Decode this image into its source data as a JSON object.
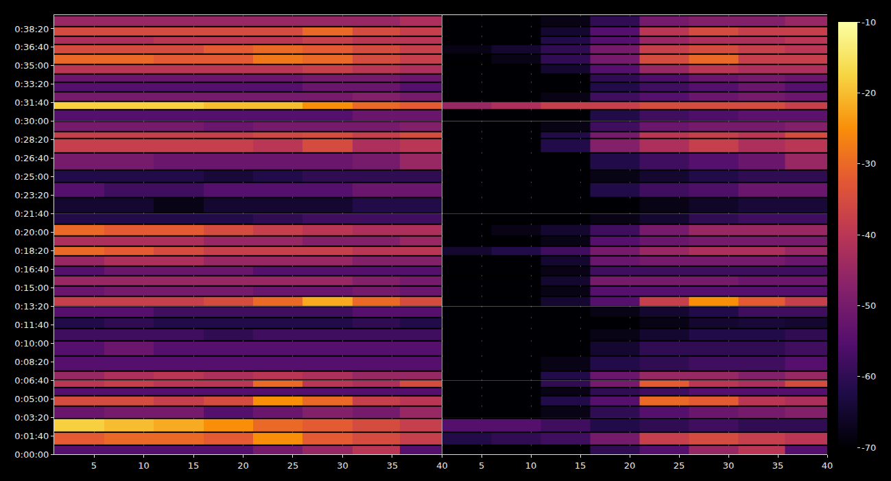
{
  "chart_data": {
    "type": "heatmap",
    "grid": true,
    "x": [
      3.5,
      8.5,
      13.5,
      18.5,
      23.5,
      28.5,
      33.5,
      38
    ],
    "y": [
      20,
      81,
      156,
      230,
      293,
      340,
      378,
      422,
      478,
      581,
      648,
      711,
      767,
      833,
      878,
      941,
      989,
      1044,
      1100,
      1148,
      1211,
      1274,
      1333,
      1441,
      1500,
      1574,
      1685,
      1730,
      1759,
      1841,
      1885,
      1933,
      1989,
      2033,
      2081,
      2133,
      2193,
      2237,
      2281,
      2341
    ],
    "xlim": [
      1,
      40
    ],
    "xticks": [
      5,
      10,
      15,
      20,
      25,
      30,
      35,
      40
    ],
    "ylim": [
      0,
      2374
    ],
    "yticks": [
      {
        "value": 0,
        "label": "0:00:00"
      },
      {
        "value": 100,
        "label": "0:01:40"
      },
      {
        "value": 200,
        "label": "0:03:20"
      },
      {
        "value": 300,
        "label": "0:05:00"
      },
      {
        "value": 400,
        "label": "0:06:40"
      },
      {
        "value": 500,
        "label": "0:08:20"
      },
      {
        "value": 600,
        "label": "0:10:00"
      },
      {
        "value": 700,
        "label": "0:11:40"
      },
      {
        "value": 800,
        "label": "0:13:20"
      },
      {
        "value": 900,
        "label": "0:15:00"
      },
      {
        "value": 1000,
        "label": "0:16:40"
      },
      {
        "value": 1100,
        "label": "0:18:20"
      },
      {
        "value": 1200,
        "label": "0:20:00"
      },
      {
        "value": 1300,
        "label": "0:21:40"
      },
      {
        "value": 1400,
        "label": "0:23:20"
      },
      {
        "value": 1500,
        "label": "0:25:00"
      },
      {
        "value": 1600,
        "label": "0:26:40"
      },
      {
        "value": 1700,
        "label": "0:28:20"
      },
      {
        "value": 1800,
        "label": "0:30:00"
      },
      {
        "value": 1900,
        "label": "0:31:40"
      },
      {
        "value": 2000,
        "label": "0:33:20"
      },
      {
        "value": 2100,
        "label": "0:35:00"
      },
      {
        "value": 2200,
        "label": "0:36:40"
      },
      {
        "value": 2300,
        "label": "0:38:20"
      }
    ],
    "colorbar": {
      "range": [
        -70,
        -10
      ],
      "ticks": [
        -70,
        -60,
        -50,
        -40,
        -30,
        -20,
        -10
      ]
    },
    "panels": [
      {
        "z": [
          [
            -55,
            -55,
            -55,
            -55,
            -50,
            -45,
            -40,
            -55
          ],
          [
            -32,
            -30,
            -30,
            -32,
            -25,
            -32,
            -35,
            -38
          ],
          [
            -18,
            -20,
            -22,
            -25,
            -30,
            -32,
            -35,
            -38
          ],
          [
            -52,
            -50,
            -50,
            -55,
            -52,
            -48,
            -50,
            -45
          ],
          [
            -35,
            -35,
            -38,
            -35,
            -25,
            -30,
            -38,
            -40
          ],
          [
            -55,
            -55,
            -55,
            -55,
            -55,
            -55,
            -55,
            -55
          ],
          [
            -40,
            -38,
            -40,
            -40,
            -30,
            -40,
            -42,
            -35
          ],
          [
            -45,
            -42,
            -40,
            -42,
            -40,
            -42,
            -45,
            -45
          ],
          [
            -55,
            -55,
            -55,
            -55,
            -55,
            -55,
            -55,
            -55
          ],
          [
            -55,
            -52,
            -55,
            -55,
            -55,
            -55,
            -55,
            -55
          ],
          [
            -58,
            -58,
            -58,
            -60,
            -58,
            -58,
            -58,
            -58
          ],
          [
            -62,
            -60,
            -62,
            -62,
            -62,
            -62,
            -60,
            -62
          ],
          [
            -55,
            -55,
            -58,
            -58,
            -58,
            -58,
            -55,
            -55
          ],
          [
            -38,
            -38,
            -38,
            -35,
            -30,
            -22,
            -30,
            -35
          ],
          [
            -52,
            -50,
            -50,
            -50,
            -52,
            -52,
            -50,
            -52
          ],
          [
            -45,
            -45,
            -45,
            -45,
            -45,
            -45,
            -48,
            -50
          ],
          [
            -55,
            -52,
            -52,
            -52,
            -55,
            -55,
            -55,
            -55
          ],
          [
            -45,
            -42,
            -42,
            -45,
            -45,
            -45,
            -48,
            -48
          ],
          [
            -30,
            -32,
            -35,
            -38,
            -38,
            -38,
            -40,
            -40
          ],
          [
            -42,
            -42,
            -42,
            -45,
            -45,
            -48,
            -48,
            -45
          ],
          [
            -30,
            -32,
            -32,
            -35,
            -38,
            -40,
            -42,
            -42
          ],
          [
            -62,
            -62,
            -62,
            -62,
            -60,
            -58,
            -58,
            -58
          ],
          [
            -65,
            -65,
            -68,
            -65,
            -65,
            -65,
            -62,
            -62
          ],
          [
            -55,
            -58,
            -58,
            -55,
            -55,
            -55,
            -52,
            -52
          ],
          [
            -62,
            -62,
            -62,
            -64,
            -62,
            -60,
            -60,
            -60
          ],
          [
            -50,
            -50,
            -52,
            -52,
            -52,
            -52,
            -50,
            -45
          ],
          [
            -38,
            -38,
            -38,
            -38,
            -40,
            -35,
            -42,
            -40
          ],
          [
            -38,
            -38,
            -38,
            -38,
            -36,
            -35,
            -38,
            -35
          ],
          [
            -50,
            -50,
            -50,
            -52,
            -50,
            -50,
            -50,
            -48
          ],
          [
            -55,
            -55,
            -55,
            -55,
            -55,
            -55,
            -52,
            -52
          ],
          [
            -18,
            -18,
            -18,
            -20,
            -20,
            -25,
            -30,
            -32
          ],
          [
            -50,
            -50,
            -50,
            -50,
            -50,
            -50,
            -48,
            -50
          ],
          [
            -55,
            -55,
            -55,
            -55,
            -55,
            -52,
            -52,
            -55
          ],
          [
            -52,
            -52,
            -52,
            -52,
            -52,
            -50,
            -50,
            -52
          ],
          [
            -40,
            -40,
            -40,
            -40,
            -40,
            -38,
            -40,
            -42
          ],
          [
            -30,
            -30,
            -32,
            -32,
            -28,
            -30,
            -35,
            -38
          ],
          [
            -35,
            -35,
            -35,
            -32,
            -30,
            -32,
            -35,
            -38
          ],
          [
            -42,
            -42,
            -40,
            -40,
            -40,
            -38,
            -40,
            -40
          ],
          [
            -35,
            -35,
            -35,
            -35,
            -35,
            -30,
            -35,
            -38
          ],
          [
            -45,
            -45,
            -45,
            -45,
            -45,
            -45,
            -45,
            -42
          ]
        ]
      },
      {
        "z": [
          [
            -70,
            -70,
            -70,
            -60,
            -55,
            -45,
            -40,
            -55
          ],
          [
            -62,
            -60,
            -58,
            -50,
            -38,
            -35,
            -38,
            -40
          ],
          [
            -55,
            -55,
            -58,
            -62,
            -60,
            -58,
            -60,
            -60
          ],
          [
            -70,
            -70,
            -68,
            -60,
            -55,
            -52,
            -50,
            -48
          ],
          [
            -70,
            -70,
            -62,
            -55,
            -30,
            -32,
            -40,
            -42
          ],
          [
            -70,
            -70,
            -68,
            -60,
            -58,
            -55,
            -55,
            -55
          ],
          [
            -70,
            -70,
            -60,
            -50,
            -32,
            -40,
            -42,
            -35
          ],
          [
            -70,
            -70,
            -62,
            -52,
            -45,
            -45,
            -48,
            -45
          ],
          [
            -70,
            -70,
            -68,
            -62,
            -60,
            -58,
            -58,
            -55
          ],
          [
            -70,
            -70,
            -70,
            -65,
            -60,
            -60,
            -60,
            -58
          ],
          [
            -70,
            -70,
            -70,
            -68,
            -65,
            -62,
            -62,
            -60
          ],
          [
            -70,
            -70,
            -70,
            -70,
            -68,
            -65,
            -64,
            -65
          ],
          [
            -70,
            -70,
            -70,
            -68,
            -65,
            -62,
            -58,
            -58
          ],
          [
            -70,
            -70,
            -65,
            -55,
            -38,
            -25,
            -32,
            -38
          ],
          [
            -70,
            -70,
            -68,
            -55,
            -55,
            -55,
            -55,
            -55
          ],
          [
            -70,
            -70,
            -65,
            -50,
            -50,
            -50,
            -52,
            -52
          ],
          [
            -70,
            -70,
            -68,
            -58,
            -58,
            -58,
            -58,
            -58
          ],
          [
            -70,
            -70,
            -65,
            -52,
            -50,
            -50,
            -50,
            -52
          ],
          [
            -65,
            -62,
            -58,
            -50,
            -45,
            -42,
            -42,
            -45
          ],
          [
            -70,
            -70,
            -68,
            -55,
            -52,
            -50,
            -50,
            -50
          ],
          [
            -70,
            -68,
            -65,
            -58,
            -50,
            -45,
            -45,
            -45
          ],
          [
            -70,
            -70,
            -70,
            -68,
            -65,
            -60,
            -58,
            -58
          ],
          [
            -70,
            -70,
            -70,
            -70,
            -68,
            -66,
            -64,
            -64
          ],
          [
            -70,
            -70,
            -70,
            -62,
            -58,
            -56,
            -52,
            -52
          ],
          [
            -70,
            -70,
            -70,
            -68,
            -65,
            -62,
            -60,
            -60
          ],
          [
            -70,
            -70,
            -70,
            -62,
            -58,
            -55,
            -52,
            -45
          ],
          [
            -70,
            -70,
            -62,
            -48,
            -42,
            -38,
            -42,
            -40
          ],
          [
            -70,
            -70,
            -62,
            -50,
            -40,
            -38,
            -40,
            -35
          ],
          [
            -70,
            -70,
            -68,
            -58,
            -52,
            -50,
            -50,
            -48
          ],
          [
            -70,
            -70,
            -70,
            -62,
            -58,
            -56,
            -54,
            -54
          ],
          [
            -45,
            -42,
            -38,
            -38,
            -35,
            -35,
            -35,
            -38
          ],
          [
            -70,
            -70,
            -68,
            -58,
            -55,
            -52,
            -50,
            -52
          ],
          [
            -70,
            -70,
            -70,
            -62,
            -58,
            -55,
            -52,
            -55
          ],
          [
            -70,
            -70,
            -70,
            -60,
            -56,
            -52,
            -50,
            -52
          ],
          [
            -70,
            -70,
            -65,
            -55,
            -45,
            -40,
            -42,
            -42
          ],
          [
            -70,
            -68,
            -60,
            -50,
            -35,
            -30,
            -38,
            -38
          ],
          [
            -68,
            -65,
            -60,
            -50,
            -38,
            -35,
            -38,
            -40
          ],
          [
            -70,
            -70,
            -62,
            -55,
            -45,
            -42,
            -42,
            -40
          ],
          [
            -70,
            -70,
            -65,
            -55,
            -40,
            -35,
            -38,
            -38
          ],
          [
            -70,
            -70,
            -68,
            -60,
            -50,
            -48,
            -48,
            -45
          ]
        ]
      }
    ]
  }
}
